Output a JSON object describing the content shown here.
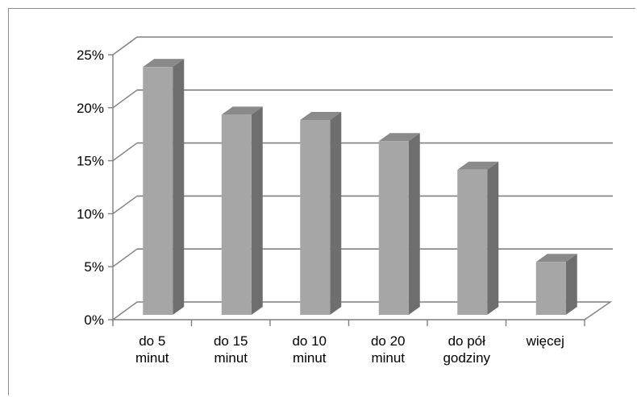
{
  "chart_data": {
    "type": "bar",
    "title": "",
    "xlabel": "",
    "ylabel": "",
    "categories": [
      [
        "do 5",
        "minut"
      ],
      [
        "do 15",
        "minut"
      ],
      [
        "do 10",
        "minut"
      ],
      [
        "do 20",
        "minut"
      ],
      [
        "do pół",
        "godziny"
      ],
      [
        "więcej"
      ]
    ],
    "values": [
      24.0,
      19.5,
      19.0,
      17.0,
      14.3,
      5.6
    ],
    "ylim": [
      0,
      25
    ],
    "y_ticks": [
      0,
      5,
      10,
      15,
      20,
      25
    ],
    "y_tick_labels": [
      "0%",
      "5%",
      "10%",
      "15%",
      "20%",
      "25%"
    ],
    "grid": true,
    "legend": "none",
    "three_d": true,
    "colors": {
      "bar_front": "#a6a6a6",
      "bar_side": "#6e6e6e",
      "bar_top": "#8a8a8a",
      "grid": "#7f7f7f"
    }
  }
}
